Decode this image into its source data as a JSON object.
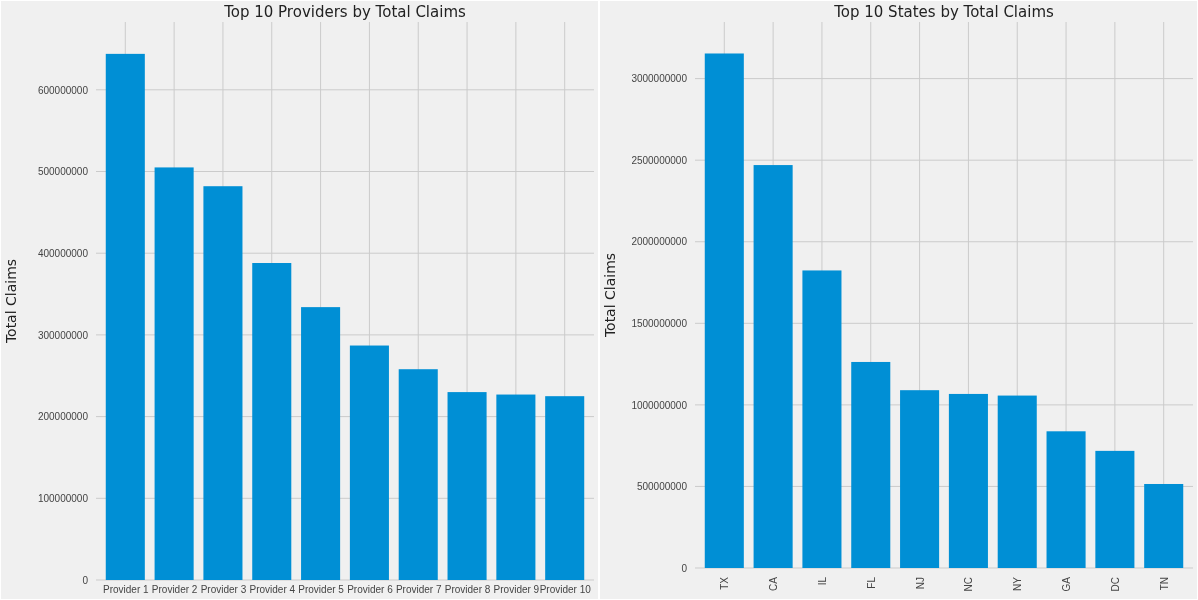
{
  "chart_data": [
    {
      "type": "bar",
      "title": "Top 10 Providers by Total Claims",
      "ylabel": "Total Claims",
      "categories": [
        "Provider 1",
        "Provider 2",
        "Provider 3",
        "Provider 4",
        "Provider 5",
        "Provider 6",
        "Provider 7",
        "Provider 8",
        "Provider 9",
        "Provider 10"
      ],
      "values": [
        644000000,
        505000000,
        482000000,
        388000000,
        334000000,
        287000000,
        258000000,
        230000000,
        227000000,
        225000000
      ],
      "color": "#008fd5",
      "ylim": [
        0,
        683000000
      ],
      "yticks": [
        0,
        100000000,
        200000000,
        300000000,
        400000000,
        500000000,
        600000000
      ],
      "grid": true
    },
    {
      "type": "bar",
      "title": "Top 10 States by Total Claims",
      "ylabel": "Total Claims",
      "categories": [
        "TX",
        "CA",
        "IL",
        "FL",
        "NJ",
        "NC",
        "NY",
        "GA",
        "DC",
        "TN"
      ],
      "values": [
        3154000000,
        2470000000,
        1824000000,
        1263000000,
        1090000000,
        1067000000,
        1057000000,
        838000000,
        718000000,
        515000000
      ],
      "color": "#008fd5",
      "ylim": [
        0,
        3347000000
      ],
      "yticks": [
        0,
        500000000,
        1000000000,
        1500000000,
        2000000000,
        2500000000,
        3000000000
      ],
      "grid": true
    }
  ]
}
